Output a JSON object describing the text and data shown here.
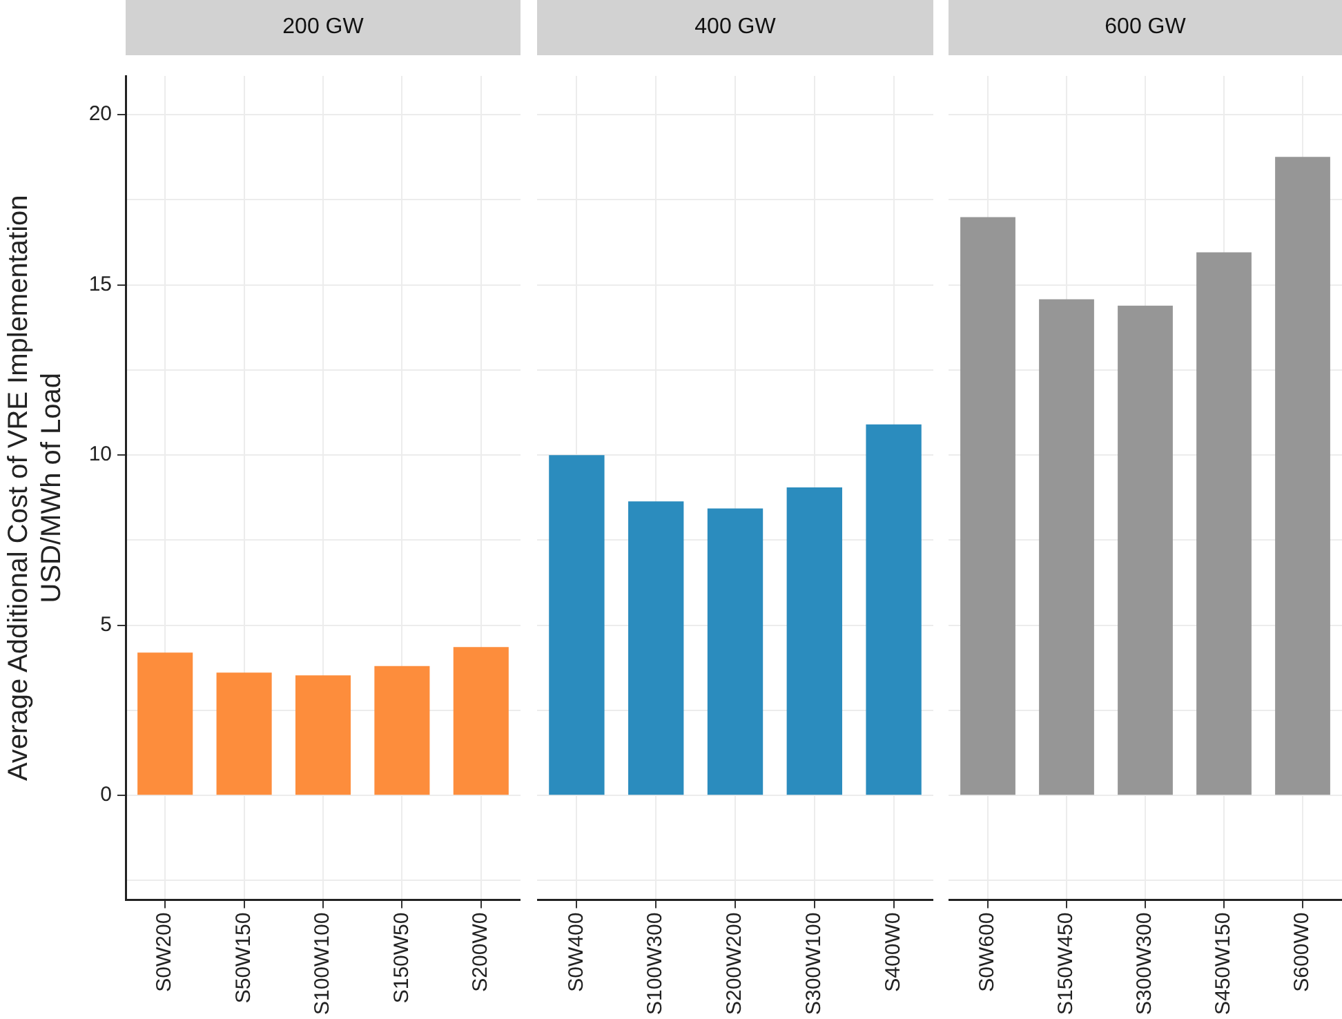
{
  "chart_data": [
    {
      "type": "bar",
      "title": "200 GW",
      "ylabel": "Average Additional Cost of VRE Implementation\nUSD/MWh of Load",
      "categories": [
        "S0W200",
        "S50W150",
        "S100W100",
        "S150W50",
        "S200W0"
      ],
      "values": [
        4.2,
        3.61,
        3.53,
        3.8,
        4.36
      ],
      "color": "#fd8d3c",
      "ylim": [
        -3.07,
        21.14
      ],
      "yticks": [
        {
          "value": -2.5,
          "label": null
        },
        0,
        {
          "value": 2.5,
          "label": null
        },
        5,
        {
          "value": 7.5,
          "label": null
        },
        10,
        {
          "value": 12.5,
          "label": null
        },
        15,
        {
          "value": 17.5,
          "label": null
        },
        20
      ],
      "grid": true
    },
    {
      "type": "bar",
      "title": "400 GW",
      "categories": [
        "S0W400",
        "S100W300",
        "S200W200",
        "S300W100",
        "S400W0"
      ],
      "values": [
        10.0,
        8.64,
        8.43,
        9.05,
        10.9
      ],
      "color": "#2b8cbe",
      "ylim": [
        -3.07,
        21.14
      ],
      "yticks": [
        {
          "value": -2.5,
          "label": null
        },
        0,
        {
          "value": 2.5,
          "label": null
        },
        5,
        {
          "value": 7.5,
          "label": null
        },
        10,
        {
          "value": 12.5,
          "label": null
        },
        15,
        {
          "value": 17.5,
          "label": null
        },
        20
      ],
      "grid": true,
      "tick_labels": "x"
    },
    {
      "type": "bar",
      "title": "600 GW",
      "categories": [
        "S0W600",
        "S150W450",
        "S300W300",
        "S450W150",
        "S600W0"
      ],
      "values": [
        16.99,
        14.58,
        14.39,
        15.96,
        18.76
      ],
      "color": "#969696",
      "ylim": [
        -3.07,
        21.14
      ],
      "yticks": [
        {
          "value": -2.5,
          "label": null
        },
        0,
        {
          "value": 2.5,
          "label": null
        },
        5,
        {
          "value": 7.5,
          "label": null
        },
        10,
        {
          "value": 12.5,
          "label": null
        },
        15,
        {
          "value": 17.5,
          "label": null
        },
        20
      ],
      "grid": true,
      "tick_labels": "x"
    }
  ]
}
